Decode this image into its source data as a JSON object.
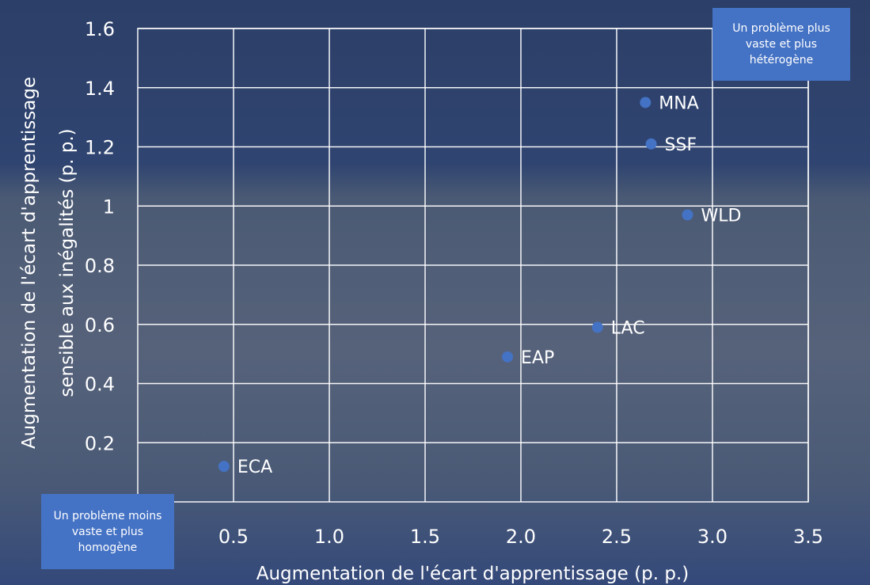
{
  "chart_data": {
    "type": "scatter",
    "title": "",
    "xlabel": "Augmentation de l'écart d'apprentissage (p. p.)",
    "ylabel_lines": [
      "Augmentation de l'écart d'apprentissage",
      "sensible aux inégalités (p. p.)"
    ],
    "xlim": [
      0,
      3.5
    ],
    "ylim": [
      0,
      1.6
    ],
    "x_ticks": [
      {
        "v": 0.5,
        "label": "0.5"
      },
      {
        "v": 1.0,
        "label": "1.0"
      },
      {
        "v": 1.5,
        "label": "1.5"
      },
      {
        "v": 2.0,
        "label": "2.0"
      },
      {
        "v": 2.5,
        "label": "2.5"
      },
      {
        "v": 3.0,
        "label": "3.0"
      },
      {
        "v": 3.5,
        "label": "3.5"
      }
    ],
    "y_ticks": [
      {
        "v": 0.2,
        "label": "0.2"
      },
      {
        "v": 0.4,
        "label": "0.4"
      },
      {
        "v": 0.6,
        "label": "0.6"
      },
      {
        "v": 0.8,
        "label": "0.8"
      },
      {
        "v": 1.0,
        "label": "1"
      },
      {
        "v": 1.2,
        "label": "1.2"
      },
      {
        "v": 1.4,
        "label": "1.4"
      },
      {
        "v": 1.6,
        "label": "1.6"
      }
    ],
    "grid": true,
    "points": [
      {
        "label": "MNA",
        "x": 2.65,
        "y": 1.35
      },
      {
        "label": "SSF",
        "x": 2.68,
        "y": 1.21
      },
      {
        "label": "WLD",
        "x": 2.87,
        "y": 0.97
      },
      {
        "label": "LAC",
        "x": 2.4,
        "y": 0.59
      },
      {
        "label": "EAP",
        "x": 1.93,
        "y": 0.49
      },
      {
        "label": "ECA",
        "x": 0.45,
        "y": 0.12
      }
    ],
    "point_color": "#4472c4",
    "annotations": {
      "top_right": "Un problème plus vaste et plus hétérogène",
      "bottom_left": "Un problème moins vaste et plus homogène"
    }
  }
}
